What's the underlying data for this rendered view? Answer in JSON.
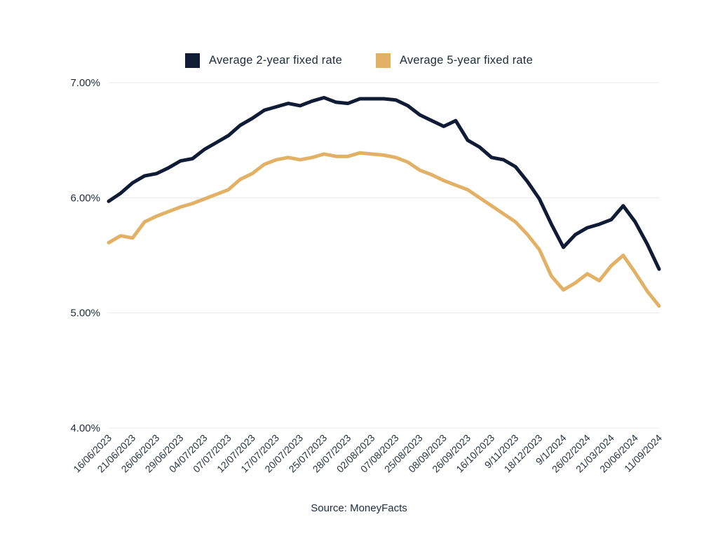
{
  "page": {
    "background": "#ffffff",
    "source_note": "Source: MoneyFacts"
  },
  "legend": [
    {
      "label": "Average 2-year fixed rate",
      "color": "#101b35"
    },
    {
      "label": "Average 5-year fixed rate",
      "color": "#e2b166"
    }
  ],
  "chart_data": {
    "type": "line",
    "title": "",
    "xlabel": "",
    "ylabel": "",
    "ylim": [
      4.0,
      7.0
    ],
    "grid": "horizontal",
    "legend_position": "top",
    "x_labels_every": 2,
    "y_ticks": [
      {
        "value": 7,
        "label": "7.00%"
      },
      {
        "value": 6,
        "label": "6.00%"
      },
      {
        "value": 5,
        "label": "5.00%"
      },
      {
        "value": 4,
        "label": "4.00%"
      }
    ],
    "x_tick_labels": [
      "16/06/2023",
      "21/06/2023",
      "26/06/2023",
      "29/06/2023",
      "04/07/2023",
      "07/07/2023",
      "12/07/2023",
      "17/07/2023",
      "20/07/2023",
      "25/07/2023",
      "28/07/2023",
      "02/08/2023",
      "07/08/2023",
      "25/08/2023",
      "08/09/2023",
      "26/09/2023",
      "16/10/2023",
      "9/11/2023",
      "18/12/2023",
      "9/1/2024",
      "26/02/2024",
      "21/03/2024",
      "20/06/2024",
      "11/09/2024"
    ],
    "series": [
      {
        "name": "Average 2-year fixed rate",
        "color": "#101b35",
        "values": [
          5.97,
          6.04,
          6.13,
          6.19,
          6.21,
          6.26,
          6.32,
          6.34,
          6.42,
          6.48,
          6.54,
          6.63,
          6.69,
          6.76,
          6.79,
          6.82,
          6.8,
          6.84,
          6.87,
          6.83,
          6.82,
          6.86,
          6.86,
          6.86,
          6.85,
          6.8,
          6.72,
          6.67,
          6.62,
          6.67,
          6.5,
          6.44,
          6.35,
          6.33,
          6.27,
          6.14,
          5.99,
          5.77,
          5.57,
          5.68,
          5.74,
          5.77,
          5.81,
          5.93,
          5.79,
          5.6,
          5.38
        ]
      },
      {
        "name": "Average 5-year fixed rate",
        "color": "#e2b166",
        "values": [
          5.61,
          5.67,
          5.65,
          5.79,
          5.84,
          5.88,
          5.92,
          5.95,
          5.99,
          6.03,
          6.07,
          6.16,
          6.21,
          6.29,
          6.33,
          6.35,
          6.33,
          6.35,
          6.38,
          6.36,
          6.36,
          6.39,
          6.38,
          6.37,
          6.35,
          6.31,
          6.24,
          6.2,
          6.15,
          6.11,
          6.07,
          6.0,
          5.93,
          5.86,
          5.79,
          5.68,
          5.55,
          5.32,
          5.2,
          5.26,
          5.34,
          5.28,
          5.41,
          5.5,
          5.35,
          5.19,
          5.06
        ]
      }
    ]
  }
}
